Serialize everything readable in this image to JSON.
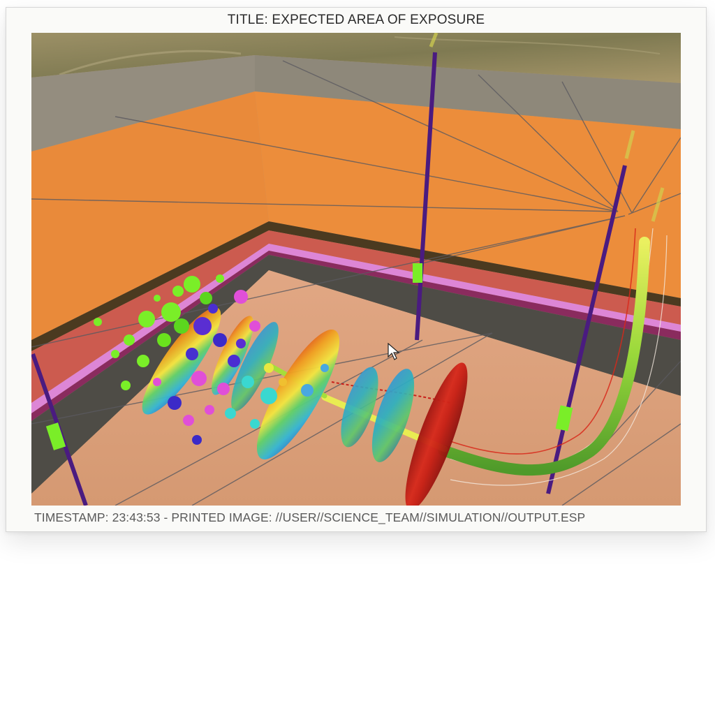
{
  "header": {
    "title": "TITLE: EXPECTED AREA OF EXPOSURE"
  },
  "footer": {
    "caption": "TIMESTAMP: 23:43:53 - PRINTED IMAGE: //USER//SCIENCE_TEAM//SIMULATION//OUTPUT.ESP"
  },
  "colors": {
    "ground_surface": "#8f8558",
    "layer_grey": "#8c8577",
    "layer_orange": "#ea8b3a",
    "layer_red": "#c9564a",
    "layer_pink": "#d07acf",
    "layer_dark": "#4f4c45",
    "floor": "#dca07d",
    "well_purple": "#4b1c80",
    "marker_green": "#77ee22"
  },
  "icons": {
    "cursor": "mouse-pointer-icon"
  }
}
